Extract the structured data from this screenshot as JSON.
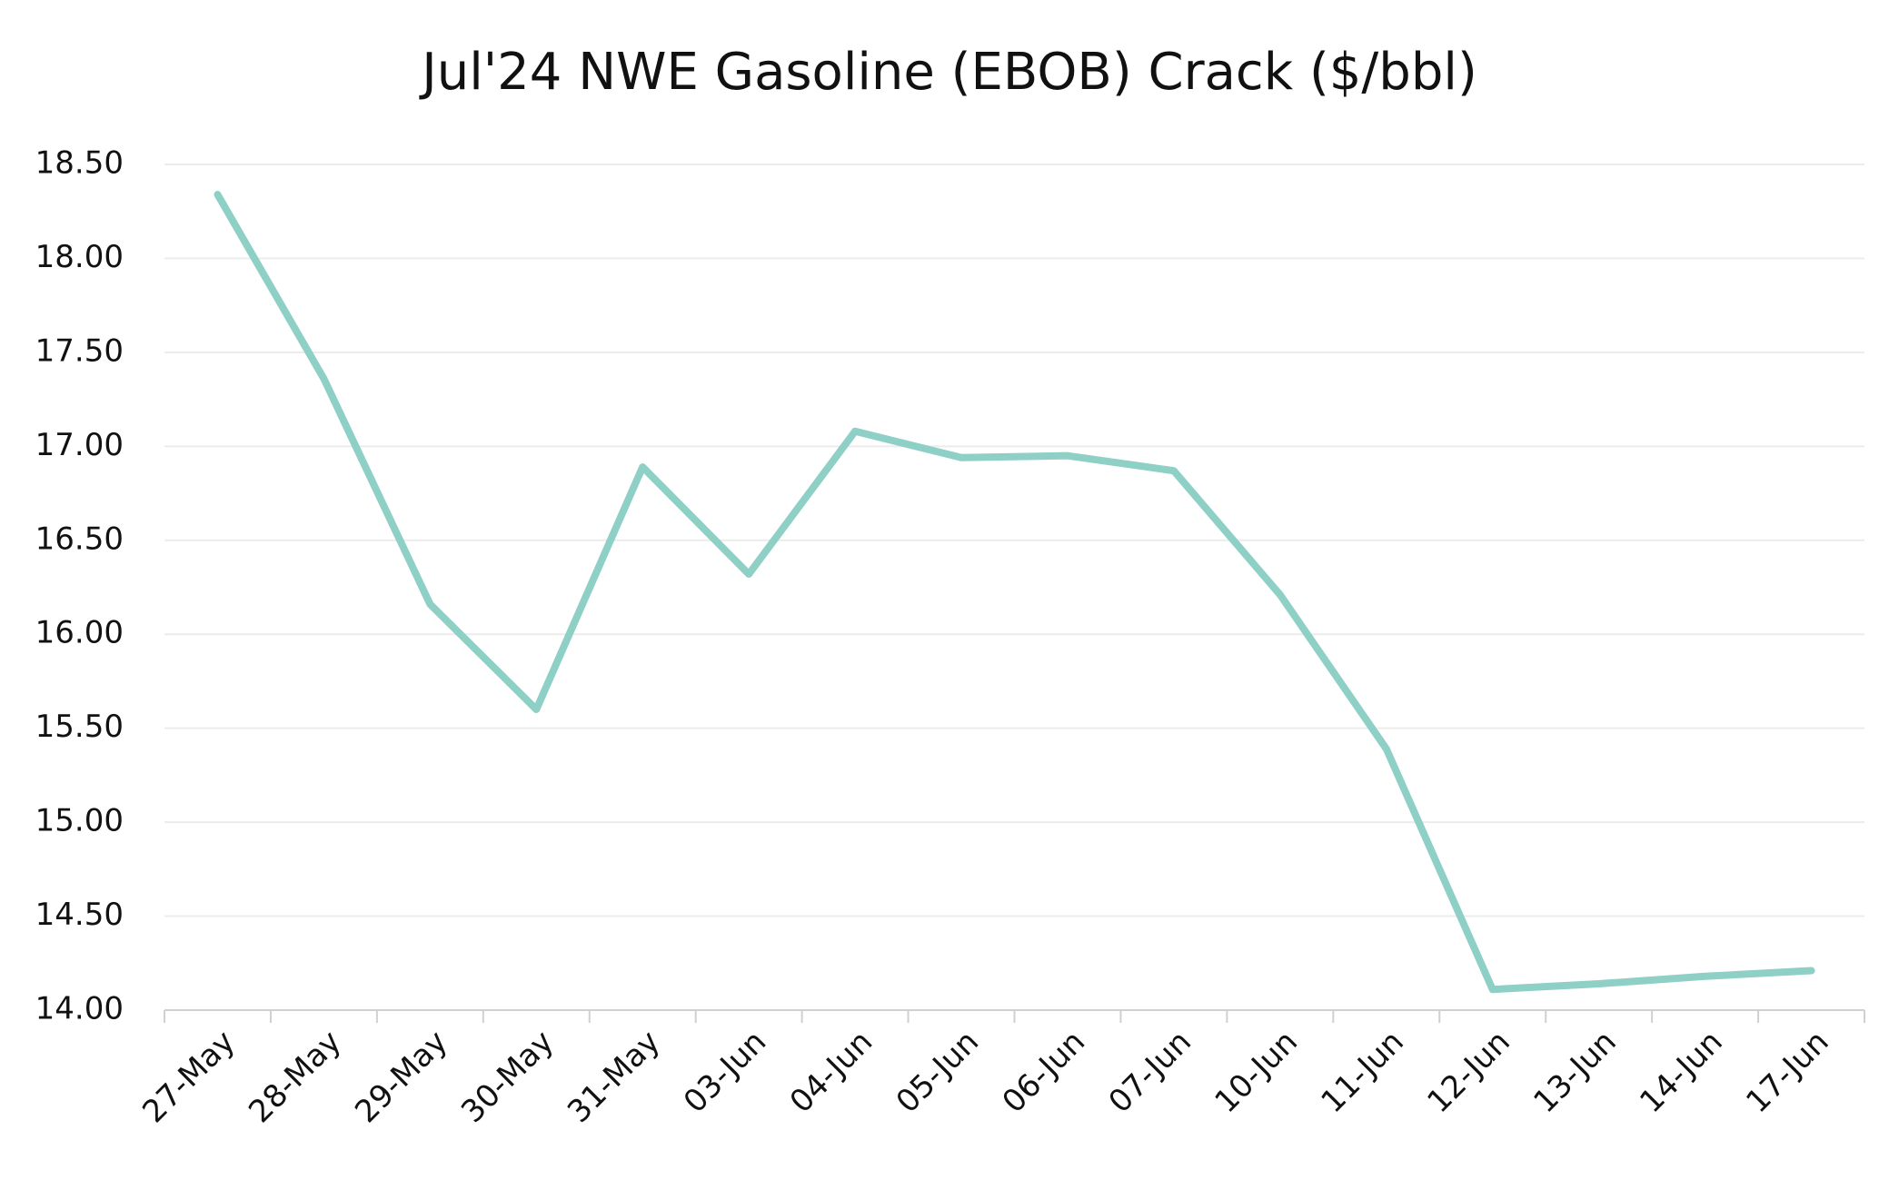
{
  "chart_data": {
    "type": "line",
    "title": "Jul'24 NWE Gasoline (EBOB) Crack ($/bbl)",
    "categories": [
      "27-May",
      "28-May",
      "29-May",
      "30-May",
      "31-May",
      "03-Jun",
      "04-Jun",
      "05-Jun",
      "06-Jun",
      "07-Jun",
      "10-Jun",
      "11-Jun",
      "12-Jun",
      "13-Jun",
      "14-Jun",
      "17-Jun"
    ],
    "values": [
      18.34,
      17.36,
      16.16,
      15.6,
      16.89,
      16.32,
      17.08,
      16.94,
      16.95,
      16.87,
      16.21,
      15.39,
      14.11,
      14.14,
      14.18,
      14.21
    ],
    "color": "#8ecfc6",
    "ylim": [
      14,
      18.5
    ],
    "yticks": [
      {
        "value": 14,
        "label": "14.00"
      },
      {
        "value": 14.5,
        "label": "14.50"
      },
      {
        "value": 15,
        "label": "15.00"
      },
      {
        "value": 15.5,
        "label": "15.50"
      },
      {
        "value": 16,
        "label": "16.00"
      },
      {
        "value": 16.5,
        "label": "16.50"
      },
      {
        "value": 17,
        "label": "17.00"
      },
      {
        "value": 17.5,
        "label": "17.50"
      },
      {
        "value": 18,
        "label": "18.00"
      },
      {
        "value": 18.5,
        "label": "18.50"
      }
    ],
    "grid": true
  }
}
